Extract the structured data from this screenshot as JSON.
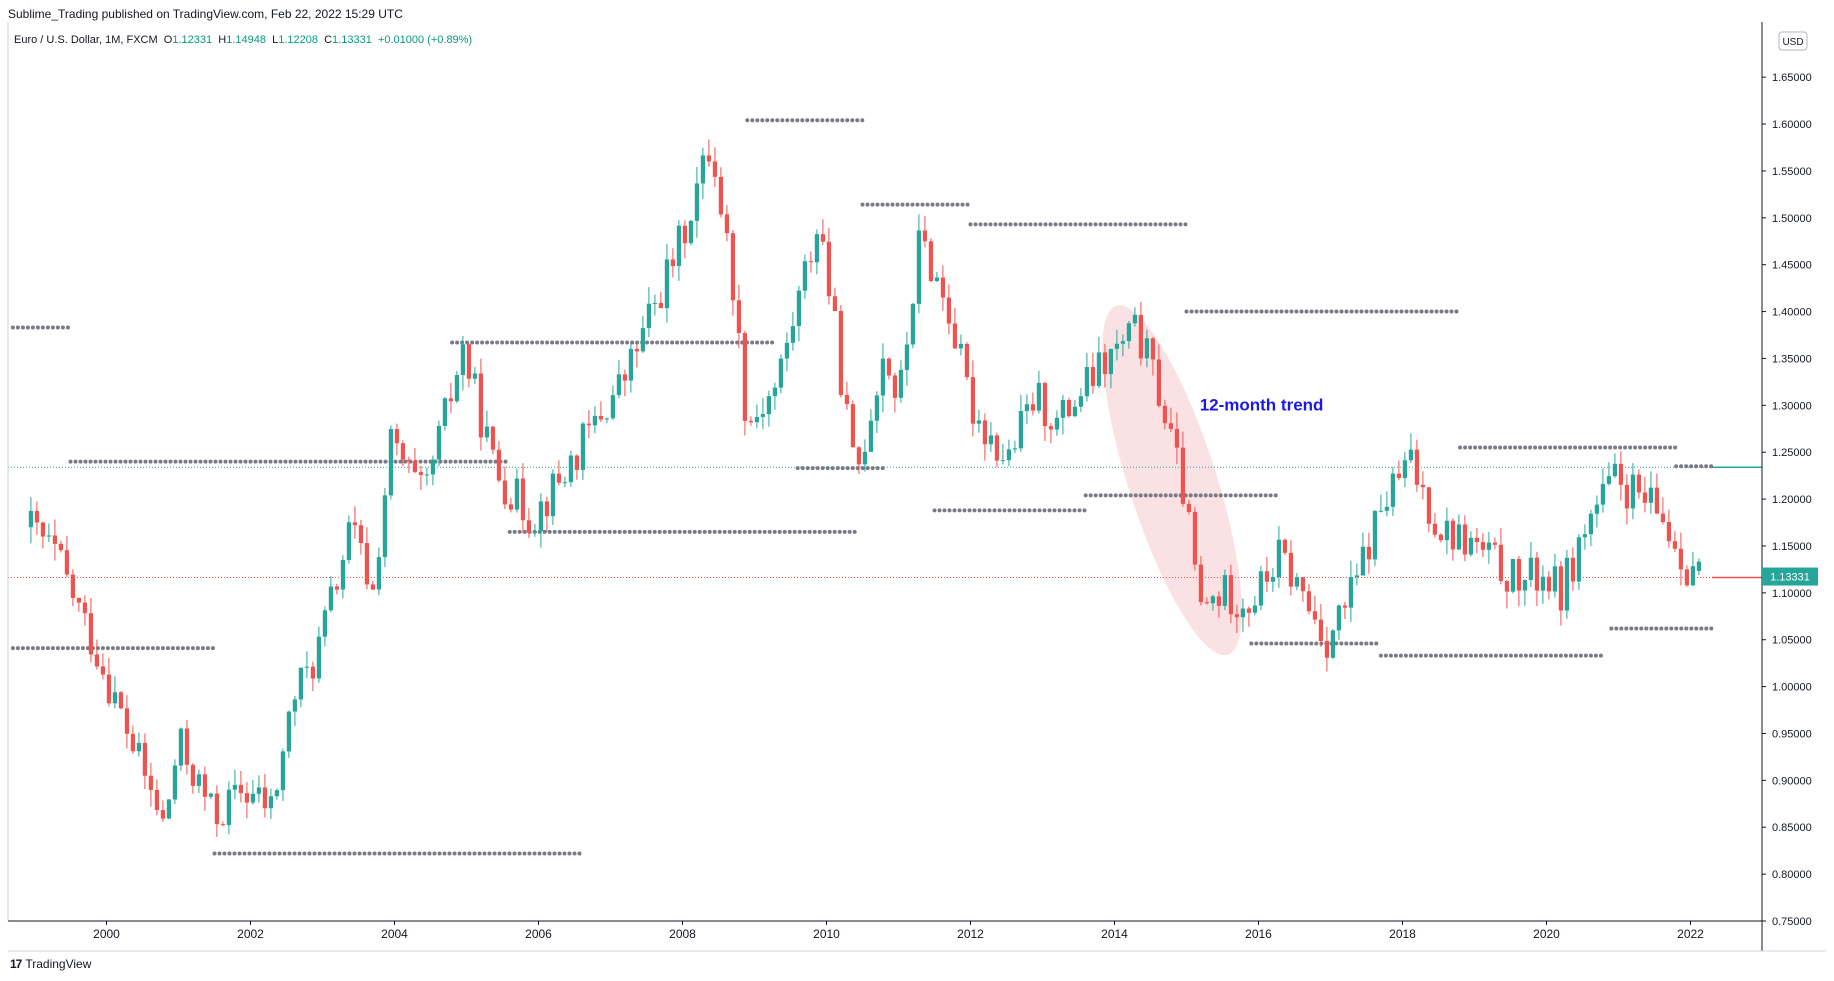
{
  "header": {
    "published": "Sublime_Trading published on TradingView.com, Feb 22, 2022 15:29 UTC"
  },
  "legend": {
    "symbol": "Euro / U.S. Dollar, 1M, FXCM",
    "o_label": "O",
    "o_value": "1.12331",
    "h_label": "H",
    "h_value": "1.14948",
    "l_label": "L",
    "l_value": "1.12208",
    "c_label": "C",
    "c_value": "1.13331",
    "change": "+0.01000 (+0.89%)"
  },
  "currency_badge": "USD",
  "price_badge": "1.13331",
  "footer": {
    "logo": "17",
    "brand": "TradingView"
  },
  "colors": {
    "up": "#26a69a",
    "down": "#ef5350",
    "dots": "#787b86",
    "annotation": "#1a1ae6",
    "ellipse": "#f8d7da"
  },
  "chart_data": {
    "type": "candlestick",
    "timeframe": "1M",
    "x_ticks": [
      "2000",
      "2002",
      "2004",
      "2006",
      "2008",
      "2010",
      "2012",
      "2014",
      "2016",
      "2018",
      "2020",
      "2022"
    ],
    "y_ticks": [
      "0.75000",
      "0.80000",
      "0.85000",
      "0.90000",
      "0.95000",
      "1.00000",
      "1.05000",
      "1.10000",
      "1.15000",
      "1.20000",
      "1.25000",
      "1.30000",
      "1.35000",
      "1.40000",
      "1.45000",
      "1.50000",
      "1.55000",
      "1.60000",
      "1.65000"
    ],
    "ylim": [
      0.75,
      1.66
    ],
    "xlim": [
      1998.7,
      2023.0
    ],
    "last_price": 1.13331,
    "reference_line": 1.234,
    "annotation": "12-month trend",
    "close_anchors": [
      [
        1998.95,
        1.17
      ],
      [
        1999.3,
        1.14
      ],
      [
        1999.9,
        1.03
      ],
      [
        2000.3,
        0.95
      ],
      [
        2000.8,
        0.85
      ],
      [
        2001.0,
        0.94
      ],
      [
        2001.5,
        0.86
      ],
      [
        2001.9,
        0.89
      ],
      [
        2002.3,
        0.87
      ],
      [
        2002.6,
        0.99
      ],
      [
        2002.9,
        1.03
      ],
      [
        2003.4,
        1.17
      ],
      [
        2003.7,
        1.1
      ],
      [
        2003.95,
        1.26
      ],
      [
        2004.4,
        1.2
      ],
      [
        2004.95,
        1.36
      ],
      [
        2005.4,
        1.23
      ],
      [
        2005.9,
        1.18
      ],
      [
        2006.3,
        1.22
      ],
      [
        2006.7,
        1.27
      ],
      [
        2007.2,
        1.33
      ],
      [
        2007.95,
        1.47
      ],
      [
        2008.4,
        1.58
      ],
      [
        2008.7,
        1.43
      ],
      [
        2008.9,
        1.28
      ],
      [
        2009.3,
        1.32
      ],
      [
        2009.9,
        1.5
      ],
      [
        2010.4,
        1.22
      ],
      [
        2010.8,
        1.36
      ],
      [
        2011.0,
        1.3
      ],
      [
        2011.3,
        1.48
      ],
      [
        2011.7,
        1.4
      ],
      [
        2012.0,
        1.3
      ],
      [
        2012.5,
        1.24
      ],
      [
        2012.9,
        1.31
      ],
      [
        2013.2,
        1.28
      ],
      [
        2013.7,
        1.33
      ],
      [
        2014.3,
        1.38
      ],
      [
        2014.6,
        1.32
      ],
      [
        2014.95,
        1.21
      ],
      [
        2015.2,
        1.08
      ],
      [
        2015.5,
        1.1
      ],
      [
        2015.9,
        1.09
      ],
      [
        2016.3,
        1.14
      ],
      [
        2016.95,
        1.05
      ],
      [
        2017.3,
        1.1
      ],
      [
        2017.7,
        1.19
      ],
      [
        2018.1,
        1.24
      ],
      [
        2018.5,
        1.17
      ],
      [
        2019.0,
        1.15
      ],
      [
        2019.6,
        1.11
      ],
      [
        2019.95,
        1.12
      ],
      [
        2020.2,
        1.1
      ],
      [
        2020.6,
        1.18
      ],
      [
        2020.95,
        1.22
      ],
      [
        2021.3,
        1.2
      ],
      [
        2021.6,
        1.18
      ],
      [
        2021.95,
        1.13
      ],
      [
        2022.1,
        1.13331
      ]
    ],
    "fractal_levels": [
      {
        "y": 1.383,
        "x1": 1998.7,
        "x2": 1999.5
      },
      {
        "y": 1.24,
        "x1": 1999.5,
        "x2": 2005.6
      },
      {
        "y": 1.041,
        "x1": 1998.7,
        "x2": 2001.5
      },
      {
        "y": 0.822,
        "x1": 2001.5,
        "x2": 2006.6
      },
      {
        "y": 1.367,
        "x1": 2004.8,
        "x2": 2009.3
      },
      {
        "y": 1.165,
        "x1": 2005.6,
        "x2": 2010.4
      },
      {
        "y": 1.604,
        "x1": 2008.9,
        "x2": 2010.5
      },
      {
        "y": 1.233,
        "x1": 2009.6,
        "x2": 2010.8
      },
      {
        "y": 1.514,
        "x1": 2010.5,
        "x2": 2012.0
      },
      {
        "y": 1.188,
        "x1": 2011.5,
        "x2": 2013.6
      },
      {
        "y": 1.493,
        "x1": 2012.0,
        "x2": 2015.0
      },
      {
        "y": 1.204,
        "x1": 2013.6,
        "x2": 2016.3
      },
      {
        "y": 1.4,
        "x1": 2015.0,
        "x2": 2018.8
      },
      {
        "y": 1.046,
        "x1": 2015.9,
        "x2": 2017.7
      },
      {
        "y": 1.033,
        "x1": 2017.7,
        "x2": 2020.8
      },
      {
        "y": 1.255,
        "x1": 2018.8,
        "x2": 2021.8
      },
      {
        "y": 1.235,
        "x1": 2021.8,
        "x2": 2022.3
      },
      {
        "y": 1.062,
        "x1": 2020.9,
        "x2": 2022.3
      }
    ]
  }
}
